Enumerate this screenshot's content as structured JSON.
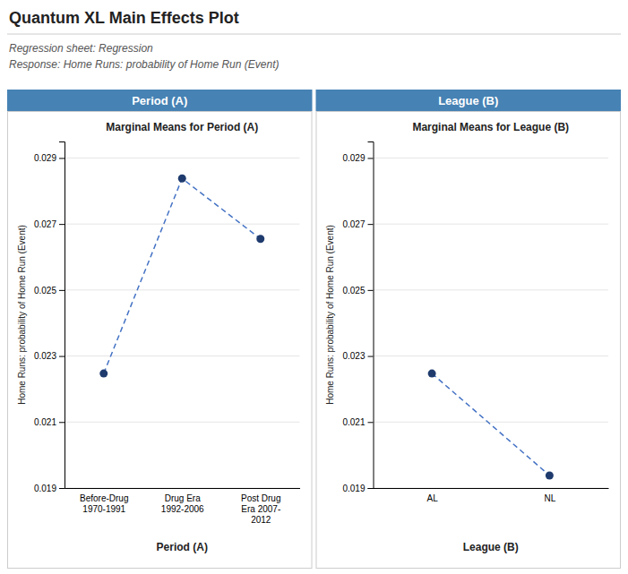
{
  "title": "Quantum XL Main Effects Plot",
  "subtitle": [
    "Regression sheet: Regression",
    "Response: Home Runs: probability of Home Run (Event)"
  ],
  "chart_data": [
    {
      "type": "line",
      "header": "Period (A)",
      "title": "Marginal Means for Period (A)",
      "xlabel": "Period (A)",
      "ylabel": "Home Runs: probability of Home Run (Event)",
      "categories": [
        "Before-Drug\n1970-1991",
        "Drug Era\n1992-2006",
        "Post Drug\nEra 2007-\n2012"
      ],
      "values": [
        0.02247,
        0.02838,
        0.02655
      ],
      "ylim": [
        0.019,
        0.0295
      ],
      "yticks": [
        0.019,
        0.021,
        0.023,
        0.025,
        0.027,
        0.029
      ],
      "grid": true,
      "color": "#4472C4",
      "colors": [
        "#1F3B6E",
        "#1F3B6E",
        "#1F3B6E"
      ],
      "marker": "circle",
      "line_style": "dashed"
    },
    {
      "type": "line",
      "header": "League (B)",
      "title": "Marginal Means for League (B)",
      "xlabel": "League (B)",
      "ylabel": "Home Runs: probability of Home Run (Event)",
      "categories": [
        "AL",
        "NL"
      ],
      "values": [
        0.02247,
        0.01938
      ],
      "ylim": [
        0.019,
        0.0295
      ],
      "yticks": [
        0.019,
        0.021,
        0.023,
        0.025,
        0.027,
        0.029
      ],
      "grid": true,
      "color": "#4472C4",
      "colors": [
        "#1F3B6E",
        "#1F3B6E"
      ],
      "marker": "circle",
      "line_style": "dashed"
    }
  ]
}
